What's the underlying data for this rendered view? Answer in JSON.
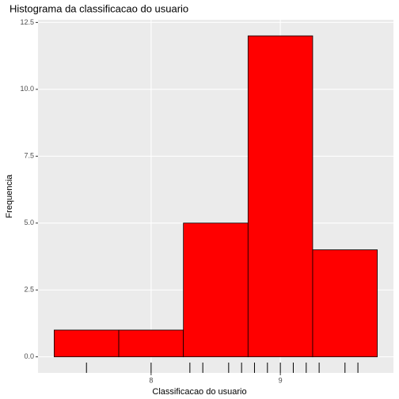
{
  "chart_data": {
    "type": "histogram",
    "title": "Histograma da classificacao do usuario",
    "xlabel": "Classificacao do usuario",
    "ylabel": "Frequencia",
    "bins": [
      7.25,
      7.75,
      8.25,
      8.75,
      9.25,
      9.75
    ],
    "counts": [
      1,
      1,
      5,
      12,
      4
    ],
    "color": "#ff0000",
    "edgecolor": "#000000",
    "rug": [
      7.5,
      8.0,
      8.3,
      8.4,
      8.6,
      8.7,
      8.8,
      8.9,
      9.0,
      9.1,
      9.2,
      9.3,
      9.5,
      9.6
    ],
    "xlim": [
      7.125,
      9.875
    ],
    "xticks": [
      8,
      9
    ],
    "ylim": [
      -0.6,
      12.6
    ],
    "yticks": [
      {
        "value": 0,
        "label": "0.0"
      },
      {
        "value": 2.5,
        "label": "2.5"
      },
      {
        "value": 5,
        "label": "5.0"
      },
      {
        "value": 7.5,
        "label": "7.5"
      },
      {
        "value": 10,
        "label": "10.0"
      },
      {
        "value": 12.5,
        "label": "12.5"
      }
    ],
    "grid": true
  }
}
